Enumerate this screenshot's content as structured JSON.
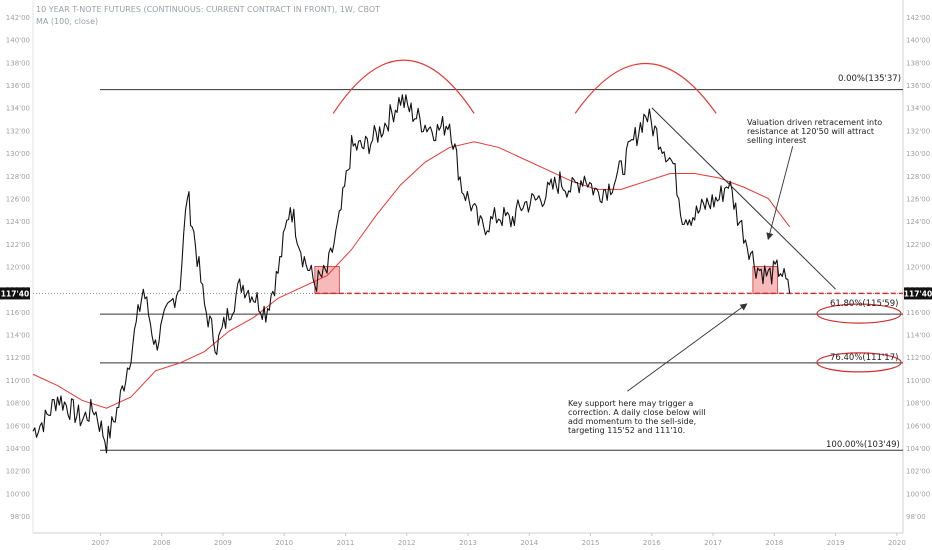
{
  "header": {
    "title": "10 YEAR T-NOTE FUTURES (CONTINUOUS: CURRENT CONTRACT IN FRONT), 1W, CBOT",
    "ma_label": "MA (100, close)"
  },
  "colors": {
    "price": "#111111",
    "ma": "#e53935",
    "fib": "#333333",
    "support": "#d32f2f",
    "zone_fill": "#f28b8b",
    "axis_text": "#a0a0a0",
    "tag_bg": "#111111"
  },
  "chart_data": {
    "type": "line",
    "title": "10 YEAR T-NOTE FUTURES (CONTINUOUS: CURRENT CONTRACT IN FRONT), 1W, CBOT",
    "x_ticks": [
      "2007",
      "2008",
      "2009",
      "2010",
      "2011",
      "2012",
      "2013",
      "2014",
      "2015",
      "2016",
      "2017",
      "2018",
      "2019",
      "2020"
    ],
    "y_ticks": [
      "98'00",
      "100'00",
      "102'00",
      "104'00",
      "106'00",
      "108'00",
      "110'00",
      "112'00",
      "114'00",
      "116'00",
      "118'00",
      "120'00",
      "122'00",
      "124'00",
      "126'00",
      "128'00",
      "130'00",
      "132'00",
      "134'00",
      "136'00",
      "138'00",
      "140'00",
      "142'00"
    ],
    "ylim": [
      96.5,
      143.5
    ],
    "xlim": [
      2006.4,
      2020.6
    ],
    "grid": false,
    "series": [
      {
        "name": "10 YEAR T-NOTE FUTURES",
        "x": [
          2006.4,
          2006.6,
          2006.8,
          2007.0,
          2007.2,
          2007.4,
          2007.6,
          2007.8,
          2008.0,
          2008.2,
          2008.4,
          2008.6,
          2008.8,
          2008.92,
          2009.05,
          2009.2,
          2009.4,
          2009.6,
          2009.8,
          2010.0,
          2010.2,
          2010.4,
          2010.6,
          2010.8,
          2011.0,
          2011.2,
          2011.4,
          2011.6,
          2011.8,
          2012.0,
          2012.2,
          2012.4,
          2012.6,
          2012.8,
          2013.0,
          2013.2,
          2013.4,
          2013.55,
          2013.7,
          2013.9,
          2014.0,
          2014.2,
          2014.4,
          2014.6,
          2014.8,
          2015.0,
          2015.2,
          2015.4,
          2015.6,
          2015.8,
          2016.0,
          2016.2,
          2016.4,
          2016.55,
          2016.7,
          2016.85,
          2017.0,
          2017.2,
          2017.4,
          2017.6,
          2017.75,
          2017.9,
          2018.0,
          2018.2,
          2018.4,
          2018.6,
          2018.75
        ],
        "values": [
          105.5,
          106.5,
          108.5,
          107.5,
          106.5,
          107.5,
          104.5,
          107.8,
          112.5,
          118.0,
          113.0,
          116.0,
          118.5,
          126.5,
          122.0,
          116.5,
          113.0,
          116.0,
          118.5,
          117.5,
          116.0,
          119.5,
          125.5,
          121.0,
          118.5,
          119.5,
          124.0,
          130.5,
          130.5,
          131.5,
          133.0,
          134.8,
          133.5,
          132.5,
          132.0,
          132.8,
          127.0,
          125.5,
          123.5,
          124.0,
          124.5,
          124.0,
          125.5,
          125.8,
          126.5,
          127.5,
          126.8,
          128.0,
          126.5,
          127.0,
          128.5,
          131.0,
          133.5,
          132.0,
          130.5,
          129.0,
          124.5,
          124.5,
          125.5,
          126.0,
          127.5,
          124.5,
          123.0,
          120.0,
          119.2,
          119.8,
          117.625
        ]
      },
      {
        "name": "MA (100, close)",
        "x": [
          2006.4,
          2006.8,
          2007.2,
          2007.6,
          2008.0,
          2008.4,
          2008.8,
          2009.2,
          2009.6,
          2010.0,
          2010.4,
          2010.8,
          2011.2,
          2011.6,
          2012.0,
          2012.4,
          2012.8,
          2013.2,
          2013.6,
          2014.0,
          2014.4,
          2014.8,
          2015.2,
          2015.6,
          2016.0,
          2016.4,
          2016.8,
          2017.2,
          2017.6,
          2018.0,
          2018.4,
          2018.75
        ],
        "values": [
          110.5,
          109.5,
          108.2,
          107.5,
          108.5,
          110.8,
          111.5,
          112.5,
          114.3,
          115.5,
          117.2,
          118.2,
          119.2,
          121.5,
          124.5,
          127.2,
          129.2,
          130.5,
          131.0,
          130.5,
          129.5,
          128.5,
          127.5,
          126.8,
          126.8,
          127.5,
          128.2,
          128.2,
          127.8,
          127.0,
          126.0,
          123.5
        ]
      }
    ],
    "fib_levels": [
      {
        "label": "0.00%(135'37)",
        "value": 135.6
      },
      {
        "label": "61.80%(115'59)",
        "value": 115.8
      },
      {
        "label": "76.40%(111'17)",
        "value": 111.5
      },
      {
        "label": "100.00%(103'49)",
        "value": 103.8
      }
    ],
    "support_level": 117.625,
    "last_price_label": "117'40",
    "support_zones": [
      {
        "x_start": 2011.0,
        "x_end": 2011.4,
        "y_low": 117.625,
        "y_high": 120.0
      },
      {
        "x_start": 2018.15,
        "x_end": 2018.55,
        "y_low": 117.625,
        "y_high": 120.0
      }
    ],
    "arcs": [
      {
        "x_start": 2011.3,
        "x_end": 2013.6,
        "base": 133.5,
        "peak": 138.2
      },
      {
        "x_start": 2015.25,
        "x_end": 2017.55,
        "base": 133.5,
        "peak": 137.9
      }
    ],
    "trendline": {
      "x": [
        2016.5,
        2019.5
      ],
      "y": [
        134.0,
        118.0
      ]
    },
    "annotations": [
      {
        "id": "valuation",
        "text": "Valuation driven retracement into\nresistance at 120'50 will attract\nselling interest",
        "arrow_from": [
          2018.8,
          130.6
        ],
        "arrow_to": [
          2018.4,
          122.4
        ]
      },
      {
        "id": "support",
        "text": "Key support here may trigger a\ncorrection. A daily close below will\nadd momentum to the sell-side,\ntargeting 115'52 and 111'10.",
        "arrow_from": [
          2016.1,
          109.0
        ],
        "arrow_to": [
          2018.05,
          116.7
        ]
      }
    ],
    "highlighted_labels": [
      "61.80%(115'59)",
      "76.40%(111'17)"
    ]
  }
}
